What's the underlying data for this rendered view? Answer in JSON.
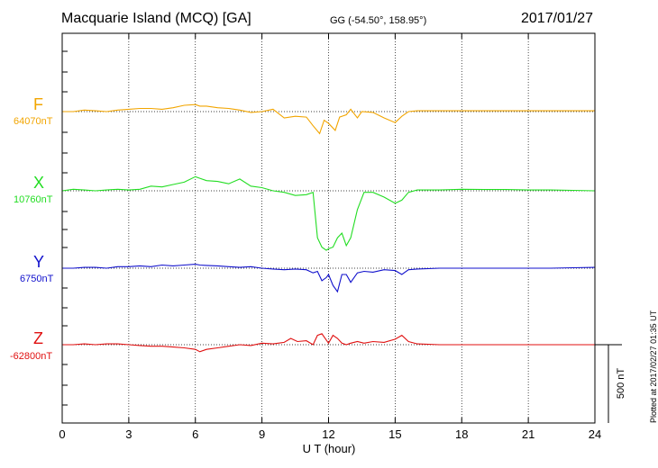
{
  "header": {
    "station": "Macquarie Island (MCQ)  [GA]",
    "coords": "GG (-54.50°, 158.95°)",
    "date": "2017/01/27"
  },
  "plotted_note": "Plotted at 2017/02/27 01:35 UT",
  "colors": {
    "F": "#f2a500",
    "X": "#22dd22",
    "Y": "#1010cc",
    "Z": "#e01010",
    "axis": "#000000"
  },
  "chart_data": {
    "type": "line",
    "xlabel": "U T (hour)",
    "xlim": [
      0,
      24
    ],
    "xticks": [
      0,
      3,
      6,
      9,
      12,
      15,
      18,
      21,
      24
    ],
    "scale_bar": "500 nT",
    "series": [
      {
        "name": "F",
        "baseline_label": "64070nT",
        "x": [
          0,
          0.5,
          1,
          1.5,
          2,
          2.5,
          3,
          3.5,
          4,
          4.5,
          5,
          5.5,
          6,
          6.2,
          6.5,
          7,
          7.5,
          8,
          8.5,
          9,
          9.5,
          10,
          10.5,
          11,
          11.3,
          11.6,
          11.8,
          12,
          12.3,
          12.5,
          12.8,
          13,
          13.3,
          13.5,
          14,
          14.5,
          15,
          15.3,
          15.6,
          16,
          17,
          18,
          19,
          20,
          21,
          22,
          23,
          24
        ],
        "y": [
          0,
          0,
          10,
          5,
          0,
          10,
          15,
          20,
          20,
          15,
          25,
          40,
          45,
          35,
          35,
          25,
          20,
          10,
          -5,
          0,
          15,
          -40,
          -30,
          -35,
          -90,
          -140,
          -55,
          -75,
          -120,
          -35,
          -20,
          15,
          -40,
          0,
          -5,
          -40,
          -70,
          -30,
          0,
          5,
          5,
          5,
          5,
          5,
          5,
          5,
          5,
          5
        ]
      },
      {
        "name": "X",
        "baseline_label": "10760nT",
        "x": [
          0,
          0.5,
          1,
          1.5,
          2,
          2.5,
          3,
          3.5,
          4,
          4.5,
          5,
          5.5,
          6,
          6.2,
          6.5,
          7,
          7.5,
          8,
          8.5,
          9,
          9.5,
          10,
          10.5,
          11,
          11.3,
          11.5,
          11.7,
          11.9,
          12,
          12.2,
          12.4,
          12.6,
          12.8,
          13,
          13.3,
          13.6,
          14,
          14.5,
          15,
          15.3,
          15.6,
          16,
          17,
          18,
          19,
          20,
          21,
          22,
          23,
          24
        ],
        "y": [
          0,
          10,
          5,
          0,
          5,
          10,
          5,
          10,
          30,
          25,
          40,
          55,
          90,
          80,
          65,
          60,
          45,
          75,
          30,
          20,
          0,
          -10,
          -30,
          -25,
          -10,
          -300,
          -360,
          -380,
          -370,
          -360,
          -300,
          -270,
          -350,
          -300,
          -120,
          -10,
          -10,
          -40,
          -80,
          -60,
          -10,
          5,
          5,
          10,
          8,
          8,
          5,
          5,
          3,
          0
        ]
      },
      {
        "name": "Y",
        "baseline_label": "6750nT",
        "x": [
          0,
          0.5,
          1,
          1.5,
          2,
          2.5,
          3,
          3.5,
          4,
          4.5,
          5,
          5.5,
          6,
          6.2,
          6.5,
          7,
          7.5,
          8,
          8.5,
          9,
          9.5,
          10,
          10.5,
          11,
          11.3,
          11.5,
          11.7,
          11.9,
          12,
          12.2,
          12.4,
          12.6,
          12.8,
          13,
          13.3,
          13.6,
          14,
          14.5,
          15,
          15.3,
          15.6,
          16,
          17,
          18,
          19,
          20,
          21,
          22,
          23,
          24
        ],
        "y": [
          0,
          0,
          5,
          5,
          0,
          10,
          10,
          15,
          10,
          20,
          15,
          20,
          25,
          20,
          18,
          15,
          10,
          5,
          10,
          0,
          -5,
          -10,
          -5,
          -10,
          -30,
          -20,
          -80,
          -60,
          -40,
          -110,
          -150,
          -40,
          -40,
          -90,
          -30,
          -20,
          -25,
          -10,
          -15,
          -40,
          -10,
          -5,
          0,
          0,
          0,
          0,
          0,
          0,
          3,
          5
        ]
      },
      {
        "name": "Z",
        "baseline_label": "-62800nT",
        "x": [
          0,
          0.5,
          1,
          1.5,
          2,
          2.5,
          3,
          3.5,
          4,
          4.5,
          5,
          5.5,
          6,
          6.2,
          6.5,
          7,
          7.5,
          8,
          8.5,
          9,
          9.5,
          10,
          10.3,
          10.6,
          11,
          11.3,
          11.5,
          11.7,
          11.9,
          12,
          12.2,
          12.4,
          12.6,
          12.8,
          13,
          13.3,
          13.6,
          14,
          14.5,
          15,
          15.3,
          15.6,
          16,
          17,
          18,
          19,
          20,
          21,
          22,
          23,
          24
        ],
        "y": [
          0,
          0,
          5,
          0,
          5,
          5,
          0,
          -5,
          -10,
          -10,
          -15,
          -20,
          -30,
          -45,
          -30,
          -20,
          -10,
          0,
          -5,
          10,
          5,
          15,
          40,
          20,
          25,
          0,
          60,
          70,
          30,
          10,
          60,
          40,
          10,
          0,
          10,
          20,
          10,
          20,
          15,
          35,
          60,
          20,
          5,
          0,
          0,
          0,
          0,
          0,
          0,
          0,
          0
        ]
      }
    ]
  }
}
